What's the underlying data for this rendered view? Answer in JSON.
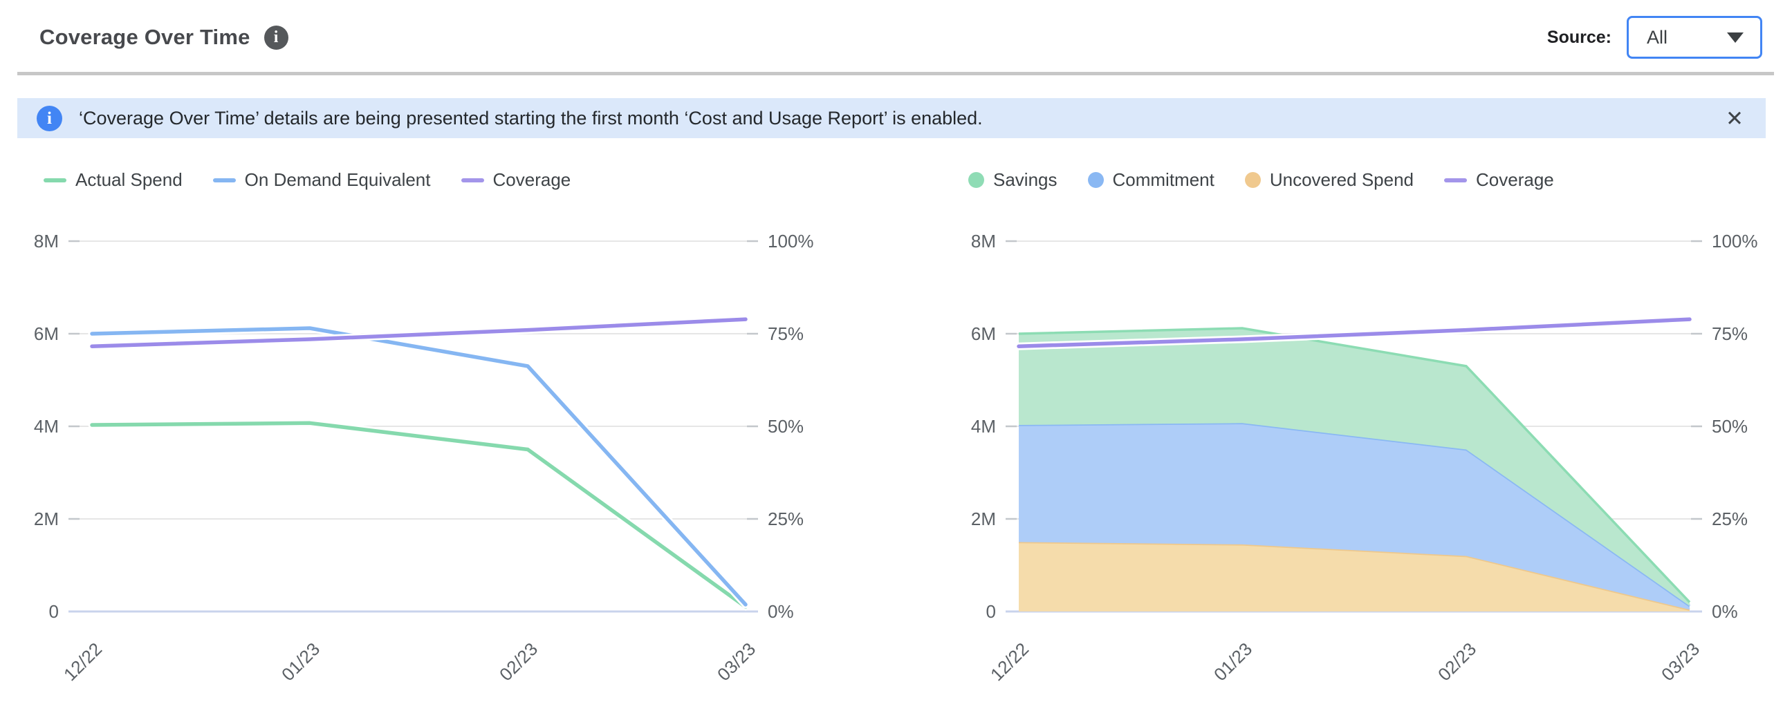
{
  "header": {
    "title": "Coverage Over Time",
    "source_label": "Source:",
    "source_value": "All"
  },
  "banner": {
    "text": "‘Coverage Over Time’ details are being presented starting the first month ‘Cost and Usage Report’ is enabled.",
    "close_icon": "✕"
  },
  "colors": {
    "accent_blue": "#4285f4",
    "series_green": "#85d9ad",
    "series_blue": "#85b6f2",
    "series_purple": "#9b8be9",
    "area_green_fill": "#b9e7ce",
    "area_blue_fill": "#aecdf8",
    "area_orange_fill": "#f5dcab",
    "gridline": "#e6e6e6",
    "zero_line": "#c9d3ec",
    "axis_text": "#5b6065",
    "banner_bg": "#dbe8fa"
  },
  "chart_data": [
    {
      "type": "line",
      "title": "Coverage Over Time (lines)",
      "categories": [
        "12/22",
        "01/23",
        "02/23",
        "03/23"
      ],
      "series": [
        {
          "name": "Actual Spend",
          "kind": "line",
          "axis": "left",
          "color": "#85d9ad",
          "values": [
            4.03,
            4.07,
            3.5,
            0.1
          ]
        },
        {
          "name": "On Demand Equivalent",
          "kind": "line",
          "axis": "left",
          "color": "#85b6f2",
          "values": [
            6.0,
            6.12,
            5.3,
            0.15
          ]
        },
        {
          "name": "Coverage",
          "kind": "line",
          "axis": "right",
          "color": "#9b8be9",
          "values": [
            71.6,
            73.5,
            76.0,
            78.9
          ]
        }
      ],
      "y_left": {
        "ticks": [
          "0",
          "2M",
          "4M",
          "6M",
          "8M"
        ],
        "min": 0,
        "max": 8
      },
      "y_right": {
        "ticks": [
          "0%",
          "25%",
          "50%",
          "75%",
          "100%"
        ],
        "min": 0,
        "max": 100
      },
      "grid": true,
      "legend_position": "top",
      "legend": [
        {
          "label": "Actual Spend",
          "marker": "line",
          "color": "#85d9ad"
        },
        {
          "label": "On Demand Equivalent",
          "marker": "line",
          "color": "#85b6f2"
        },
        {
          "label": "Coverage",
          "marker": "line",
          "color": "#a395ea"
        }
      ]
    },
    {
      "type": "area",
      "title": "Coverage Over Time (stacked)",
      "categories": [
        "12/22",
        "01/23",
        "02/23",
        "03/23"
      ],
      "series": [
        {
          "name": "Uncovered Spend",
          "kind": "area",
          "axis": "left",
          "fill": "#f5dcab",
          "edge": "#eec88c",
          "values": [
            1.5,
            1.45,
            1.2,
            0.04
          ]
        },
        {
          "name": "Commitment",
          "kind": "area",
          "axis": "left",
          "fill": "#aecdf8",
          "edge": "#8ab8f3",
          "values": [
            2.53,
            2.62,
            2.3,
            0.08
          ]
        },
        {
          "name": "Savings",
          "kind": "area",
          "axis": "left",
          "fill": "#b9e7ce",
          "edge": "#8cdcb3",
          "values": [
            1.97,
            2.05,
            1.8,
            0.08
          ]
        },
        {
          "name": "Coverage",
          "kind": "line",
          "axis": "right",
          "color": "#9b8be9",
          "values": [
            71.6,
            73.5,
            76.0,
            78.9
          ]
        }
      ],
      "y_left": {
        "ticks": [
          "0",
          "2M",
          "4M",
          "6M",
          "8M"
        ],
        "min": 0,
        "max": 8
      },
      "y_right": {
        "ticks": [
          "0%",
          "25%",
          "50%",
          "75%",
          "100%"
        ],
        "min": 0,
        "max": 100
      },
      "grid": true,
      "legend_position": "top",
      "legend": [
        {
          "label": "Savings",
          "marker": "circle",
          "color": "#8fdcb5"
        },
        {
          "label": "Commitment",
          "marker": "circle",
          "color": "#8ab8f3"
        },
        {
          "label": "Uncovered Spend",
          "marker": "circle",
          "color": "#f0c98e"
        },
        {
          "label": "Coverage",
          "marker": "line",
          "color": "#a395ea"
        }
      ]
    }
  ]
}
